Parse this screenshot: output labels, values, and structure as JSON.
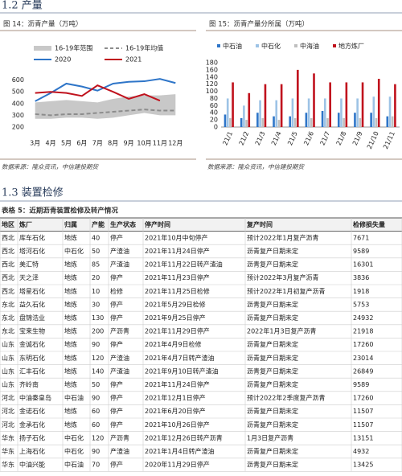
{
  "sections": [
    "1.2 产量",
    "1.3 装置检修"
  ],
  "chart_data": [
    {
      "type": "line",
      "caption": "图 14：沥青产量（万吨）",
      "categories": [
        "3月",
        "4月",
        "5月",
        "6月",
        "7月",
        "8月",
        "9月",
        "10月",
        "11月",
        "12月"
      ],
      "series": [
        {
          "name": "16-19年范围",
          "style": "band",
          "color": "#c8c8c8",
          "low": [
            270,
            270,
            280,
            280,
            270,
            280,
            300,
            320,
            300,
            300
          ],
          "high": [
            410,
            420,
            430,
            420,
            410,
            440,
            460,
            470,
            470,
            480
          ]
        },
        {
          "name": "16-19年均值",
          "style": "dashed",
          "color": "#8c8c8c",
          "values": [
            310,
            300,
            310,
            310,
            320,
            330,
            340,
            350,
            340,
            340
          ]
        },
        {
          "name": "2020",
          "style": "solid",
          "color": "#2e75c8",
          "values": [
            420,
            490,
            570,
            545,
            510,
            570,
            585,
            590,
            610,
            575
          ]
        },
        {
          "name": "2021",
          "style": "solid",
          "color": "#c0121d",
          "values": [
            490,
            500,
            490,
            465,
            555,
            500,
            440,
            480,
            425,
            null
          ]
        }
      ],
      "ylim": [
        200,
        700
      ],
      "yticks": [
        200,
        300,
        400,
        500,
        600
      ],
      "source": "数据来源：隆众资讯，中信建投期货"
    },
    {
      "type": "bar",
      "caption": "图 15：沥青产量分所属（万吨）",
      "categories": [
        "21/1",
        "21/2",
        "21/3",
        "21/4",
        "21/5",
        "21/6",
        "21/7",
        "21/8",
        "21/9",
        "21/10",
        "21/11"
      ],
      "series": [
        {
          "name": "中石油",
          "color": "#2e75c8",
          "values": [
            35,
            25,
            40,
            30,
            30,
            40,
            45,
            40,
            40,
            40,
            30
          ]
        },
        {
          "name": "中石化",
          "color": "#9dc3e6",
          "values": [
            80,
            60,
            75,
            75,
            80,
            80,
            80,
            80,
            80,
            85,
            85
          ]
        },
        {
          "name": "中海油",
          "color": "#bfbfbf",
          "values": [
            25,
            20,
            25,
            20,
            25,
            25,
            25,
            25,
            25,
            25,
            30
          ]
        },
        {
          "name": "地方炼厂",
          "color": "#c0121d",
          "values": [
            125,
            95,
            120,
            120,
            160,
            150,
            125,
            125,
            125,
            135,
            120
          ]
        }
      ],
      "ylim": [
        0,
        180
      ],
      "yticks": [
        0,
        20,
        40,
        60,
        80,
        100,
        120,
        140,
        160,
        180
      ],
      "source": "数据来源：隆众资讯，中信建投期货"
    }
  ],
  "table": {
    "caption": "表格 5：近期沥青装置检修及转产情况",
    "header": [
      "地区",
      "炼厂",
      "归属",
      "产能",
      "生产状态",
      "停产时间",
      "复产时间",
      "检修损失量"
    ],
    "rows": [
      [
        "西北",
        "库车石化",
        "地炼",
        40,
        "停产",
        "2021年10月中旬停产",
        "预计2022年1月复产沥青",
        7671
      ],
      [
        "西北",
        "塔河石化",
        "中石化",
        50,
        "产渣油",
        "2021年11月24日停产",
        "沥青复产日期未定",
        9589
      ],
      [
        "西北",
        "美汇特",
        "地炼",
        85,
        "产渣油",
        "2021年11月22日转产渣油",
        "沥青复产日期未定",
        16301
      ],
      [
        "西北",
        "天之泽",
        "地炼",
        20,
        "停产",
        "2021年11月23日停产",
        "预计2022年3月复产沥青",
        3836
      ],
      [
        "西北",
        "塔星石化",
        "地炼",
        10,
        "检修",
        "2021年11月25日检修",
        "预计2022年1月初复产沥青",
        1918
      ],
      [
        "东北",
        "益久石化",
        "地炼",
        30,
        "停产",
        "2021年5月29日检修",
        "沥青复产日期未定",
        5753
      ],
      [
        "东北",
        "盘锦浩业",
        "地炼",
        130,
        "停产",
        "2021年9月25日停产",
        "沥青复产日期未定",
        24932
      ],
      [
        "东北",
        "宝来生物",
        "地炼",
        200,
        "产沥青",
        "2021年11月29日停产",
        "2022年1月3日复产沥青",
        21918
      ],
      [
        "山东",
        "金诚石化",
        "地炼",
        90,
        "停产",
        "2021年4月9日检修",
        "沥青复产日期未定",
        17260
      ],
      [
        "山东",
        "东明石化",
        "地炼",
        120,
        "产渣油",
        "2021年4月7日转产渣油",
        "沥青复产日期未定",
        23014
      ],
      [
        "山东",
        "汇丰石化",
        "地炼",
        140,
        "产渣油",
        "2021年9月10日转产渣油",
        "沥青复产日期未定",
        26849
      ],
      [
        "山东",
        "齐岭南",
        "地炼",
        50,
        "停产",
        "2021年11月24日停产",
        "沥青复产日期未定",
        9589
      ],
      [
        "河北",
        "中油秦皇岛",
        "中石油",
        90,
        "停产",
        "2021年12月1日停产",
        "预计2022年2季度复产沥青",
        17260
      ],
      [
        "河北",
        "金诺石化",
        "地炼",
        60,
        "停产",
        "2021年6月20日停产",
        "沥青复产日期未定",
        11507
      ],
      [
        "河北",
        "金承石化",
        "地炼",
        60,
        "停产",
        "2021年10月26日停产",
        "沥青复产日期未定",
        11507
      ],
      [
        "华东",
        "扬子石化",
        "中石化",
        120,
        "产沥青",
        "2021年12月26日转产沥青",
        "1月3日复产沥青",
        13151
      ],
      [
        "华东",
        "上海石化",
        "中石化",
        90,
        "产渣油",
        "2021年1月4日转产渣油",
        "沥青复产日期未定",
        4932
      ],
      [
        "华东",
        "中油兴能",
        "中石油",
        70,
        "停产",
        "2020年11月29日停产",
        "沥青复产日期未定",
        13425
      ]
    ]
  }
}
